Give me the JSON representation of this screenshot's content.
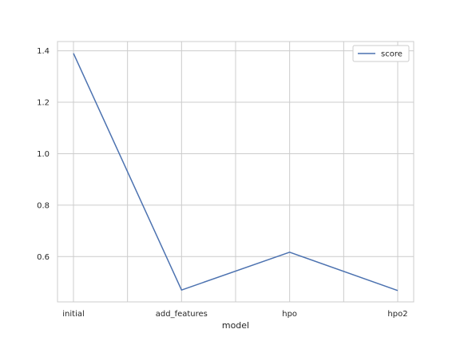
{
  "chart_data": {
    "type": "line",
    "categories": [
      "initial",
      "add_features",
      "hpo",
      "hpo2"
    ],
    "x_minor_ticks": 7,
    "series": [
      {
        "name": "score",
        "values": [
          1.39,
          0.47,
          0.617,
          0.468
        ],
        "color": "#4c72b0"
      }
    ],
    "title": "",
    "xlabel": "model",
    "ylabel": "",
    "ylim": [
      0.424,
      1.436
    ],
    "yticks": [
      0.6,
      0.8,
      1.0,
      1.2,
      1.4
    ],
    "ytick_labels": [
      "0.6",
      "0.8",
      "1.0",
      "1.2",
      "1.4"
    ],
    "grid": true,
    "legend_position": "upper right",
    "colors": {
      "grid": "#cccccc",
      "spine": "#cccccc",
      "text": "#262626",
      "background": "#ffffff"
    }
  }
}
